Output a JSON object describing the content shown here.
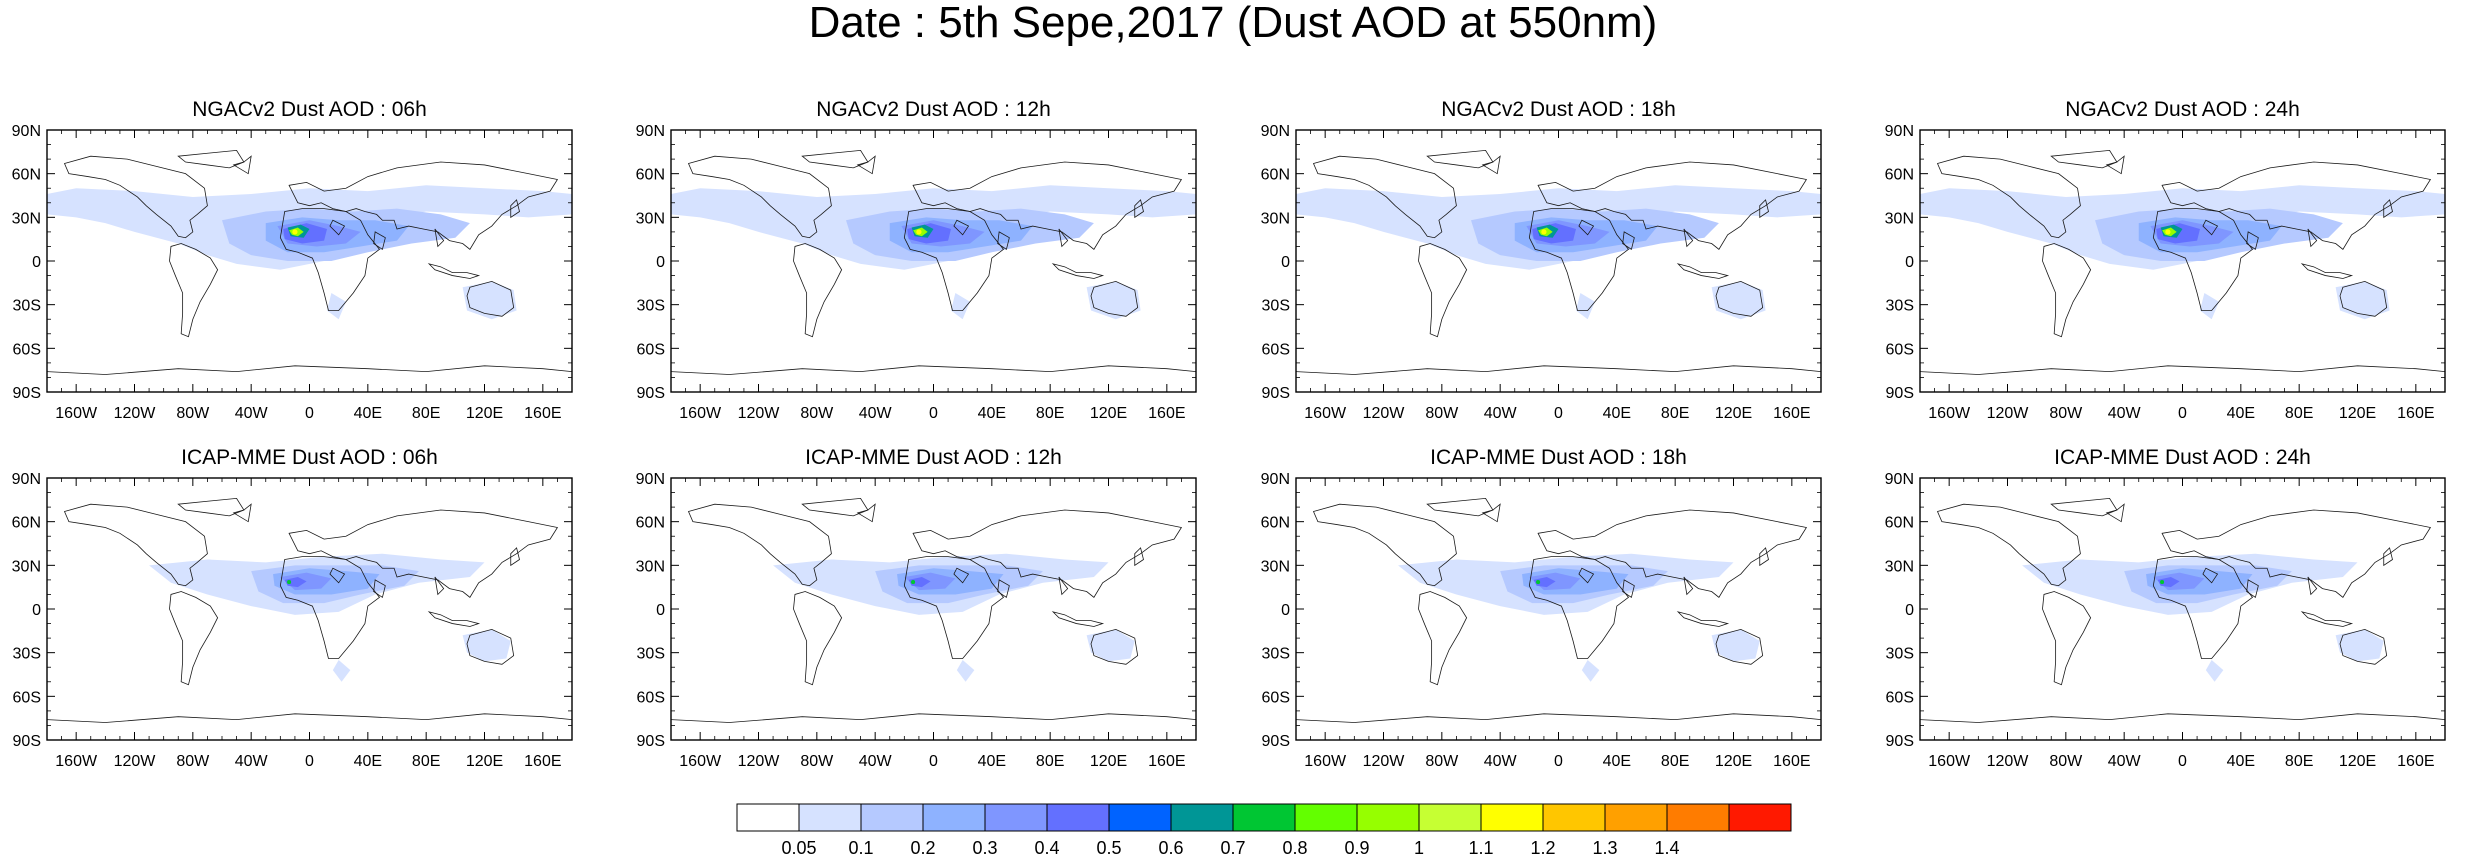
{
  "figure": {
    "title": "Date : 5th Sepe,2017 (Dust AOD at 550nm)"
  },
  "axes": {
    "lat_labels": [
      "90N",
      "60N",
      "30N",
      "0",
      "30S",
      "60S",
      "90S"
    ],
    "lon_labels": [
      "160W",
      "120W",
      "80W",
      "40W",
      "0",
      "40E",
      "80E",
      "120E",
      "160E"
    ],
    "lon_values": [
      -160,
      -120,
      -80,
      -40,
      0,
      40,
      80,
      120,
      160
    ],
    "lat_values": [
      90,
      60,
      30,
      0,
      -30,
      -60,
      -90
    ]
  },
  "panels": [
    {
      "title": "NGACv2 Dust AOD : 06h",
      "model": "ngac"
    },
    {
      "title": "NGACv2 Dust AOD : 12h",
      "model": "ngac"
    },
    {
      "title": "NGACv2 Dust AOD : 18h",
      "model": "ngac"
    },
    {
      "title": "NGACv2 Dust AOD : 24h",
      "model": "ngac"
    },
    {
      "title": "ICAP-MME Dust AOD : 06h",
      "model": "icap"
    },
    {
      "title": "ICAP-MME Dust AOD : 12h",
      "model": "icap"
    },
    {
      "title": "ICAP-MME Dust AOD : 18h",
      "model": "icap"
    },
    {
      "title": "ICAP-MME Dust AOD : 24h",
      "model": "icap"
    }
  ],
  "colorbar": {
    "labels": [
      "0.05",
      "0.1",
      "0.2",
      "0.3",
      "0.4",
      "0.5",
      "0.6",
      "0.7",
      "0.8",
      "0.9",
      "1",
      "1.1",
      "1.2",
      "1.3",
      "1.4"
    ],
    "colors": [
      "#ffffff",
      "#d6e2ff",
      "#b5c9ff",
      "#8eb2ff",
      "#7f96ff",
      "#6370ff",
      "#0063ff",
      "#009696",
      "#00c633",
      "#63ff00",
      "#96ff00",
      "#c6ff33",
      "#ffff00",
      "#ffc600",
      "#ffa000",
      "#ff7c00",
      "#ff1900"
    ]
  }
}
